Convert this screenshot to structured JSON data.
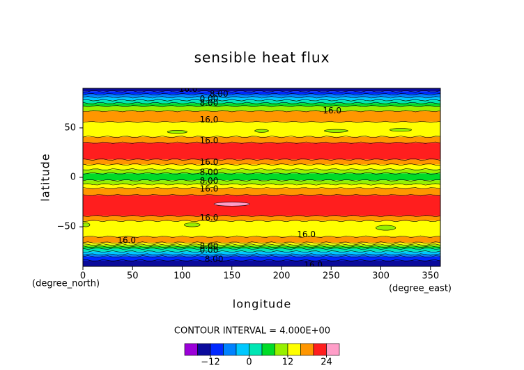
{
  "chart_data": {
    "type": "contour",
    "title": "sensible heat flux",
    "xlabel": "longitude",
    "ylabel": "latitude",
    "xunit": "(degree_east)",
    "yunit": "(degree_north)",
    "contour_interval_label": "CONTOUR INTERVAL = 4.000E+00",
    "xlim": [
      0,
      360
    ],
    "ylim": [
      -90,
      90
    ],
    "xticks": [
      0,
      50,
      100,
      150,
      200,
      250,
      300,
      350
    ],
    "yticks": [
      {
        "value": -50,
        "label": "−50"
      },
      0,
      50
    ],
    "lat_edges": [
      90,
      87,
      84,
      81,
      78,
      75,
      72,
      67,
      56,
      41,
      35,
      18,
      13,
      8,
      4,
      -3,
      -7,
      -11,
      -18,
      -39,
      -44,
      -60,
      -66,
      -68,
      -70,
      -72,
      -75,
      -78,
      -80,
      -84,
      -90
    ],
    "band_values": [
      -14,
      -10,
      -6,
      -2,
      2,
      6,
      10,
      18,
      14,
      18,
      22,
      18,
      14,
      10,
      6,
      10,
      14,
      18,
      22,
      18,
      14,
      18,
      14,
      10,
      6,
      2,
      -2,
      -6,
      -10,
      -14
    ],
    "patches": [
      {
        "lon": 150,
        "lat": -27,
        "lon_span": 36,
        "lat_span": 4,
        "value": 26
      },
      {
        "lon": 95,
        "lat": 46,
        "lon_span": 20,
        "lat_span": 3,
        "value": 10
      },
      {
        "lon": 180,
        "lat": 47,
        "lon_span": 14,
        "lat_span": 3,
        "value": 10
      },
      {
        "lon": 255,
        "lat": 47,
        "lon_span": 24,
        "lat_span": 3,
        "value": 10
      },
      {
        "lon": 320,
        "lat": 48,
        "lon_span": 22,
        "lat_span": 3,
        "value": 10
      },
      {
        "lon": 110,
        "lat": -48,
        "lon_span": 16,
        "lat_span": 4,
        "value": 10
      },
      {
        "lon": 305,
        "lat": -51,
        "lon_span": 20,
        "lat_span": 5,
        "value": 10
      },
      {
        "lon": 3,
        "lat": -48,
        "lon_span": 8,
        "lat_span": 4,
        "value": 10
      }
    ],
    "contour_labels": [
      {
        "text": "16.0",
        "lon": 106,
        "lat": 89
      },
      {
        "text": "8.00",
        "lon": 137,
        "lat": 84
      },
      {
        "text": "0.00",
        "lon": 127,
        "lat": 79
      },
      {
        "text": "8.00",
        "lon": 127,
        "lat": 75
      },
      {
        "text": "16.0",
        "lon": 251,
        "lat": 67
      },
      {
        "text": "16.0",
        "lon": 127,
        "lat": 58
      },
      {
        "text": "16.0",
        "lon": 127,
        "lat": 37
      },
      {
        "text": "16.0",
        "lon": 127,
        "lat": 15
      },
      {
        "text": "8.00",
        "lon": 127,
        "lat": 5
      },
      {
        "text": "8.00",
        "lon": 127,
        "lat": -4
      },
      {
        "text": "16.0",
        "lon": 127,
        "lat": -12
      },
      {
        "text": "16.0",
        "lon": 127,
        "lat": -41
      },
      {
        "text": "16.0",
        "lon": 225,
        "lat": -58
      },
      {
        "text": "16.0",
        "lon": 44,
        "lat": -64
      },
      {
        "text": "8.00",
        "lon": 127,
        "lat": -70
      },
      {
        "text": "0.00",
        "lon": 127,
        "lat": -74
      },
      {
        "text": "8.00",
        "lon": 132,
        "lat": -83
      },
      {
        "text": "16.0",
        "lon": 232,
        "lat": -89
      }
    ],
    "colorbar": {
      "levels": [
        -20,
        -16,
        -12,
        -8,
        -4,
        0,
        4,
        8,
        12,
        16,
        20,
        24,
        28
      ],
      "colors": [
        "#9b00d8",
        "#0a0a9c",
        "#0028ff",
        "#0082ff",
        "#00c8ff",
        "#00e6b4",
        "#00dc28",
        "#96f000",
        "#ffff00",
        "#ff9600",
        "#ff1e1e",
        "#ff9ec8"
      ],
      "ticks": [
        {
          "value": -12,
          "label": "−12"
        },
        0,
        12,
        24
      ]
    }
  }
}
